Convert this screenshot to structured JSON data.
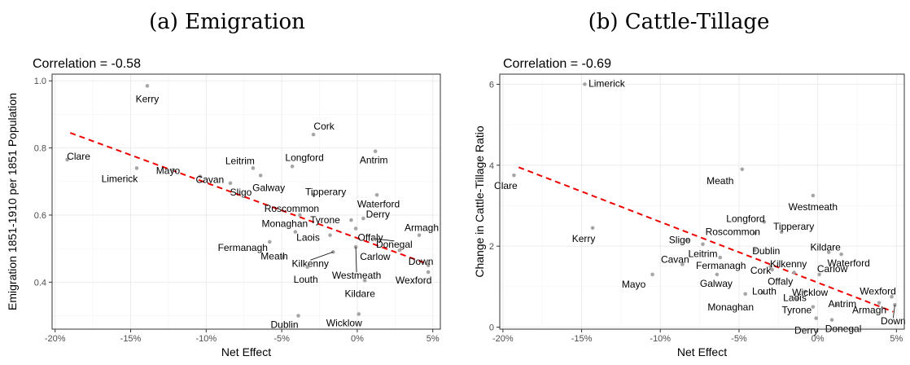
{
  "chart_data": [
    {
      "type": "scatter",
      "title": "(a) Emigration",
      "subtitle": "Correlation = -0.58",
      "xlabel": "Net Effect",
      "ylabel": "Emigration 1851-1910 per 1851 Population",
      "x_unit": "%",
      "xlim": [
        -20.2,
        5.5
      ],
      "ylim": [
        0.26,
        1.02
      ],
      "xticks": [
        -20,
        -15,
        -10,
        -5,
        0,
        5
      ],
      "xtick_labels": [
        "-20%",
        "-15%",
        "-10%",
        "-5%",
        "0%",
        "5%"
      ],
      "yticks": [
        0.4,
        0.6,
        0.8,
        1.0
      ],
      "ytick_labels": [
        "0.4",
        "0.6",
        "0.8",
        "1.0"
      ],
      "grid": true,
      "trend_line": {
        "color": "#ee0000",
        "style": "dashed",
        "x": [
          -19.0,
          4.8
        ],
        "y": [
          0.845,
          0.452
        ]
      },
      "points": [
        {
          "label": "Kerry",
          "x": -13.9,
          "y": 0.985
        },
        {
          "label": "Cork",
          "x": -2.9,
          "y": 0.84
        },
        {
          "label": "Antrim",
          "x": 1.2,
          "y": 0.79
        },
        {
          "label": "Clare",
          "x": -19.2,
          "y": 0.765
        },
        {
          "label": "Limerick",
          "x": -14.6,
          "y": 0.74
        },
        {
          "label": "Mayo",
          "x": -12.2,
          "y": 0.735
        },
        {
          "label": "Leitrim",
          "x": -6.9,
          "y": 0.74
        },
        {
          "label": "Longford",
          "x": -4.3,
          "y": 0.745
        },
        {
          "label": "Cavan",
          "x": -10.4,
          "y": 0.715
        },
        {
          "label": "Galway",
          "x": -6.4,
          "y": 0.718
        },
        {
          "label": "Sligo",
          "x": -8.4,
          "y": 0.695
        },
        {
          "label": "Tipperary",
          "x": -2.9,
          "y": 0.66
        },
        {
          "label": "Waterford",
          "x": 1.3,
          "y": 0.66
        },
        {
          "label": "Roscommon",
          "x": -3.8,
          "y": 0.6
        },
        {
          "label": "Derry",
          "x": 0.4,
          "y": 0.59
        },
        {
          "label": "Tyrone",
          "x": -0.4,
          "y": 0.585
        },
        {
          "label": "Monaghan",
          "x": -4.1,
          "y": 0.55
        },
        {
          "label": "Offaly",
          "x": -0.1,
          "y": 0.56
        },
        {
          "label": "Armagh",
          "x": 4.1,
          "y": 0.54
        },
        {
          "label": "Donegal",
          "x": 1.1,
          "y": 0.53
        },
        {
          "label": "Fermanagh",
          "x": -5.8,
          "y": 0.52
        },
        {
          "label": "Laois",
          "x": -1.8,
          "y": 0.54
        },
        {
          "label": "Meath",
          "x": -4.9,
          "y": 0.475
        },
        {
          "label": "Carlow",
          "x": 2.8,
          "y": 0.495
        },
        {
          "label": "Kilkenny",
          "x": -1.6,
          "y": 0.49
        },
        {
          "label": "Westmeath",
          "x": -0.1,
          "y": 0.505
        },
        {
          "label": "Down",
          "x": 4.7,
          "y": 0.45
        },
        {
          "label": "Louth",
          "x": -3.3,
          "y": 0.445
        },
        {
          "label": "Wexford",
          "x": 4.7,
          "y": 0.43
        },
        {
          "label": "Kildare",
          "x": 0.5,
          "y": 0.405
        },
        {
          "label": "Dublin",
          "x": -3.9,
          "y": 0.3
        },
        {
          "label": "Wicklow",
          "x": 0.1,
          "y": 0.305
        }
      ]
    },
    {
      "type": "scatter",
      "title": "(b) Cattle-Tillage",
      "subtitle": "Correlation = -0.69",
      "xlabel": "Net Effect",
      "ylabel": "Change in Cattle-Tillage Ratio",
      "x_unit": "%",
      "xlim": [
        -20.2,
        5.5
      ],
      "ylim": [
        -0.05,
        6.25
      ],
      "xticks": [
        -20,
        -15,
        -10,
        -5,
        0,
        5
      ],
      "xtick_labels": [
        "-20%",
        "-15%",
        "-10%",
        "-5%",
        "0%",
        "5%"
      ],
      "yticks": [
        0,
        2,
        4,
        6
      ],
      "ytick_labels": [
        "0",
        "2",
        "4",
        "6"
      ],
      "grid": true,
      "trend_line": {
        "color": "#ee0000",
        "style": "dashed",
        "x": [
          -19.0,
          4.8
        ],
        "y": [
          3.95,
          0.38
        ]
      },
      "points": [
        {
          "label": "Limerick",
          "x": -14.8,
          "y": 6.0
        },
        {
          "label": "Clare",
          "x": -19.3,
          "y": 3.75
        },
        {
          "label": "Meath",
          "x": -4.8,
          "y": 3.9
        },
        {
          "label": "Westmeath",
          "x": -0.3,
          "y": 3.25
        },
        {
          "label": "Kerry",
          "x": -14.3,
          "y": 2.45
        },
        {
          "label": "Longford",
          "x": -3.4,
          "y": 2.6
        },
        {
          "label": "Tipperary",
          "x": -2.3,
          "y": 2.35
        },
        {
          "label": "Roscommon",
          "x": -4.0,
          "y": 2.32
        },
        {
          "label": "Sligo",
          "x": -8.3,
          "y": 2.15
        },
        {
          "label": "Dublin",
          "x": -4.0,
          "y": 1.9
        },
        {
          "label": "Leitrim",
          "x": -7.3,
          "y": 2.05
        },
        {
          "label": "Kildare",
          "x": 0.7,
          "y": 1.85
        },
        {
          "label": "Waterford",
          "x": 1.5,
          "y": 1.8
        },
        {
          "label": "Cavan",
          "x": -8.6,
          "y": 1.55
        },
        {
          "label": "Fermanagh",
          "x": -6.2,
          "y": 1.72
        },
        {
          "label": "Kilkenny",
          "x": -3.0,
          "y": 1.5
        },
        {
          "label": "Galway",
          "x": -6.4,
          "y": 1.3
        },
        {
          "label": "Cork",
          "x": -2.9,
          "y": 1.42
        },
        {
          "label": "Offaly",
          "x": -1.5,
          "y": 1.35
        },
        {
          "label": "Carlow",
          "x": 0.1,
          "y": 1.3
        },
        {
          "label": "Wexford",
          "x": 4.7,
          "y": 0.75
        },
        {
          "label": "Mayo",
          "x": -10.5,
          "y": 1.3
        },
        {
          "label": "Louth",
          "x": -3.5,
          "y": 0.85
        },
        {
          "label": "Monaghan",
          "x": -4.6,
          "y": 0.82
        },
        {
          "label": "Wicklow",
          "x": -0.8,
          "y": 0.88
        },
        {
          "label": "Laois",
          "x": -1.3,
          "y": 0.7
        },
        {
          "label": "Antrim",
          "x": 1.2,
          "y": 0.55
        },
        {
          "label": "Tyrone",
          "x": -0.3,
          "y": 0.5
        },
        {
          "label": "Armagh",
          "x": 3.9,
          "y": 0.6
        },
        {
          "label": "Derry",
          "x": -0.1,
          "y": 0.22
        },
        {
          "label": "Donegal",
          "x": 0.9,
          "y": 0.18
        },
        {
          "label": "Down",
          "x": 4.9,
          "y": 0.55
        }
      ]
    }
  ],
  "colors": {
    "panel_background": "#ffffff",
    "panel_border": "#333333",
    "grid_major": "#ebebeb",
    "grid_minor": "#f4f4f4",
    "point": "#a6a6a6",
    "trend_line": "#ee0000"
  }
}
